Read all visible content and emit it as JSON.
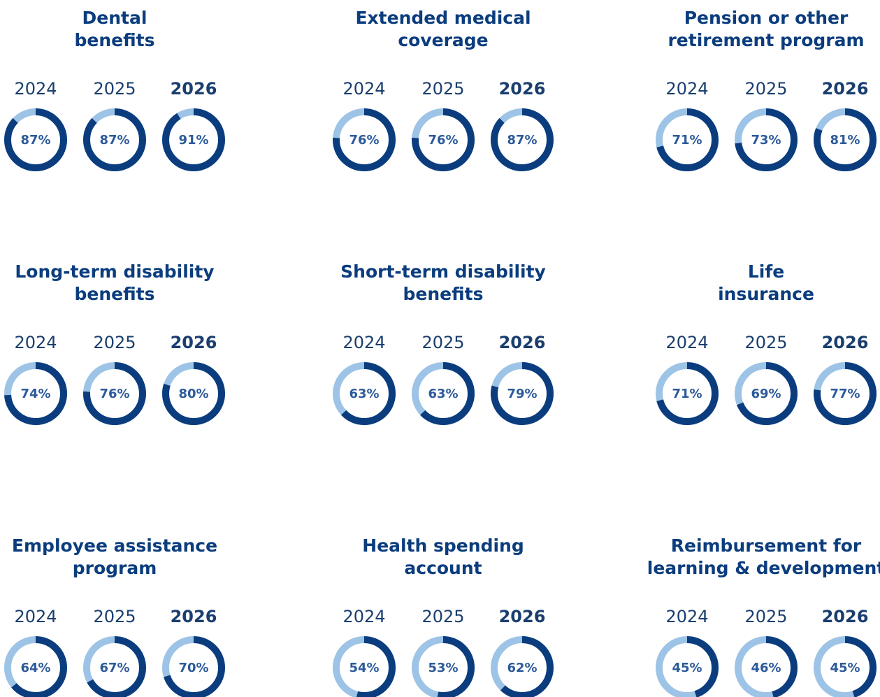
{
  "chart_data": [
    {
      "type": "donut",
      "title": [
        "Dental",
        "benefits"
      ],
      "categories": [
        "2024",
        "2025",
        "2026"
      ],
      "values": [
        87,
        87,
        91
      ],
      "value_labels": [
        "87%",
        "87%",
        "91%"
      ],
      "color": "#0b3d7e",
      "track_color": "#9dc4e6"
    },
    {
      "type": "donut",
      "title": [
        "Extended medical",
        "coverage"
      ],
      "categories": [
        "2024",
        "2025",
        "2026"
      ],
      "values": [
        76,
        76,
        87
      ],
      "value_labels": [
        "76%",
        "76%",
        "87%"
      ],
      "color": "#0b3d7e",
      "track_color": "#9dc4e6"
    },
    {
      "type": "donut",
      "title": [
        "Pension or other",
        "retirement program"
      ],
      "categories": [
        "2024",
        "2025",
        "2026"
      ],
      "values": [
        71,
        73,
        81
      ],
      "value_labels": [
        "71%",
        "73%",
        "81%"
      ],
      "color": "#0b3d7e",
      "track_color": "#9dc4e6"
    },
    {
      "type": "donut",
      "title": [
        "Long-term disability",
        "benefits"
      ],
      "categories": [
        "2024",
        "2025",
        "2026"
      ],
      "values": [
        74,
        76,
        80
      ],
      "value_labels": [
        "74%",
        "76%",
        "80%"
      ],
      "color": "#0b3d7e",
      "track_color": "#9dc4e6"
    },
    {
      "type": "donut",
      "title": [
        "Short-term disability",
        "benefits"
      ],
      "categories": [
        "2024",
        "2025",
        "2026"
      ],
      "values": [
        63,
        63,
        79
      ],
      "value_labels": [
        "63%",
        "63%",
        "79%"
      ],
      "color": "#0b3d7e",
      "track_color": "#9dc4e6"
    },
    {
      "type": "donut",
      "title": [
        "Life",
        "insurance"
      ],
      "categories": [
        "2024",
        "2025",
        "2026"
      ],
      "values": [
        71,
        69,
        77
      ],
      "value_labels": [
        "71%",
        "69%",
        "77%"
      ],
      "color": "#0b3d7e",
      "track_color": "#9dc4e6"
    },
    {
      "type": "donut",
      "title": [
        "Employee assistance",
        "program"
      ],
      "categories": [
        "2024",
        "2025",
        "2026"
      ],
      "values": [
        64,
        67,
        70
      ],
      "value_labels": [
        "64%",
        "67%",
        "70%"
      ],
      "color": "#0b3d7e",
      "track_color": "#9dc4e6"
    },
    {
      "type": "donut",
      "title": [
        "Health spending",
        "account"
      ],
      "categories": [
        "2024",
        "2025",
        "2026"
      ],
      "values": [
        54,
        53,
        62
      ],
      "value_labels": [
        "54%",
        "53%",
        "62%"
      ],
      "color": "#0b3d7e",
      "track_color": "#9dc4e6"
    },
    {
      "type": "donut",
      "title": [
        "Reimbursement for",
        "learning & development"
      ],
      "categories": [
        "2024",
        "2025",
        "2026"
      ],
      "values": [
        45,
        46,
        45
      ],
      "value_labels": [
        "45%",
        "46%",
        "45%"
      ],
      "color": "#0b3d7e",
      "track_color": "#9dc4e6"
    }
  ]
}
